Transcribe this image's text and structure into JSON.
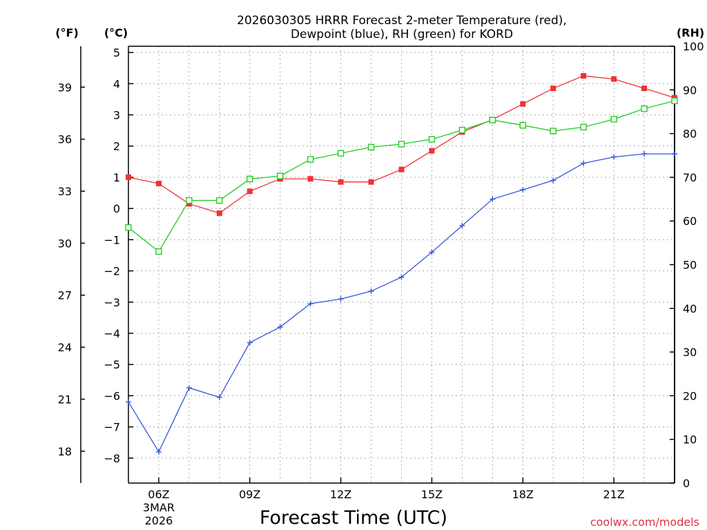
{
  "chart_data": {
    "type": "line",
    "title_line1": "2026030305 HRRR Forecast 2-meter Temperature (red),",
    "title_line2": "Dewpoint (blue), RH (green) for KORD",
    "xlabel": "Forecast Time (UTC)",
    "credit": "coolwx.com/models",
    "unit_f": "(°F)",
    "unit_c": "(°C)",
    "unit_rh": "(RH)",
    "x": [
      5,
      6,
      7,
      8,
      9,
      10,
      11,
      12,
      13,
      14,
      15,
      16,
      17,
      18,
      19,
      20,
      21,
      22,
      23
    ],
    "xlim": [
      5,
      23
    ],
    "x_ticks": [
      {
        "x": 6,
        "label": "06Z",
        "sub1": "3MAR",
        "sub2": "2026"
      },
      {
        "x": 9,
        "label": "09Z"
      },
      {
        "x": 12,
        "label": "12Z"
      },
      {
        "x": 15,
        "label": "15Z"
      },
      {
        "x": 18,
        "label": "18Z"
      },
      {
        "x": 21,
        "label": "21Z"
      }
    ],
    "ylim_c": [
      -8.8,
      5.2
    ],
    "yticks_c": [
      5,
      4,
      3,
      2,
      1,
      0,
      -1,
      -2,
      -3,
      -4,
      -5,
      -6,
      -7,
      -8
    ],
    "yticks_f": [
      39,
      36,
      33,
      30,
      27,
      24,
      21,
      18
    ],
    "ylim_rh": [
      0,
      100
    ],
    "yticks_rh": [
      100,
      90,
      80,
      70,
      60,
      50,
      40,
      30,
      20,
      10,
      0
    ],
    "series": [
      {
        "name": "Temperature",
        "axis": "C",
        "color": "#ee3333",
        "marker": "filled-square",
        "values": [
          1.0,
          0.8,
          0.15,
          -0.15,
          0.55,
          0.95,
          0.95,
          0.85,
          0.85,
          1.25,
          1.85,
          2.45,
          2.85,
          3.35,
          3.85,
          4.25,
          4.15,
          3.85,
          3.55
        ]
      },
      {
        "name": "Dewpoint",
        "axis": "C",
        "color": "#3355dd",
        "marker": "plus",
        "values": [
          -6.2,
          -7.8,
          -5.75,
          -6.05,
          -4.3,
          -3.8,
          -3.05,
          -2.9,
          -2.65,
          -2.2,
          -1.4,
          -0.55,
          0.3,
          0.6,
          0.9,
          1.45,
          1.65,
          1.75,
          1.75
        ]
      },
      {
        "name": "RH",
        "axis": "RH",
        "color": "#22cc22",
        "marker": "open-square",
        "values": [
          58.5,
          53,
          64.7,
          64.7,
          69.6,
          70.3,
          74.1,
          75.5,
          76.9,
          77.6,
          78.7,
          80.8,
          83.1,
          81.9,
          80.6,
          81.5,
          83.3,
          85.7,
          87.5
        ]
      }
    ]
  }
}
